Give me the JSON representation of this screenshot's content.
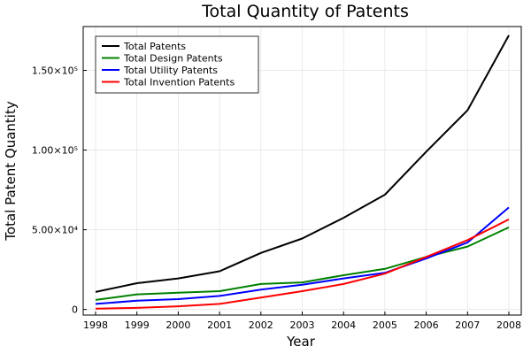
{
  "chart_data": {
    "type": "line",
    "title": "Total Quantity of Patents",
    "xlabel": "Year",
    "ylabel": "Total Patent Quantity",
    "x": [
      1998,
      1999,
      2000,
      2001,
      2002,
      2003,
      2004,
      2005,
      2006,
      2007,
      2008
    ],
    "xticks": [
      "1998",
      "1999",
      "2000",
      "2001",
      "2002",
      "2003",
      "2004",
      "2005",
      "2006",
      "2007",
      "2008"
    ],
    "yticks": [
      {
        "value": 0,
        "label": "0"
      },
      {
        "value": 50000,
        "label": "5.00×10⁴"
      },
      {
        "value": 100000,
        "label": "1.00×10⁵"
      },
      {
        "value": 150000,
        "label": "1.50×10⁵"
      }
    ],
    "ylim": [
      -3500,
      177500
    ],
    "xlim": [
      1997.7,
      2008.3
    ],
    "grid": true,
    "legend_position": "top-left",
    "series": [
      {
        "name": "Total Patents",
        "color": "#000000",
        "values": [
          11000,
          16500,
          19500,
          24000,
          35500,
          44500,
          57500,
          72000,
          99000,
          125000,
          172000
        ]
      },
      {
        "name": "Total Design Patents",
        "color": "#008000",
        "values": [
          6000,
          9500,
          10500,
          11500,
          16000,
          17000,
          21500,
          25500,
          33000,
          39500,
          51500
        ]
      },
      {
        "name": "Total Utility Patents",
        "color": "#0000ff",
        "values": [
          3500,
          5500,
          6500,
          8500,
          12500,
          15500,
          19500,
          23000,
          32000,
          42000,
          64000
        ]
      },
      {
        "name": "Total Invention Patents",
        "color": "#ff0000",
        "values": [
          500,
          1000,
          2000,
          3500,
          7500,
          11500,
          16000,
          22500,
          33000,
          43500,
          56500
        ]
      }
    ]
  }
}
